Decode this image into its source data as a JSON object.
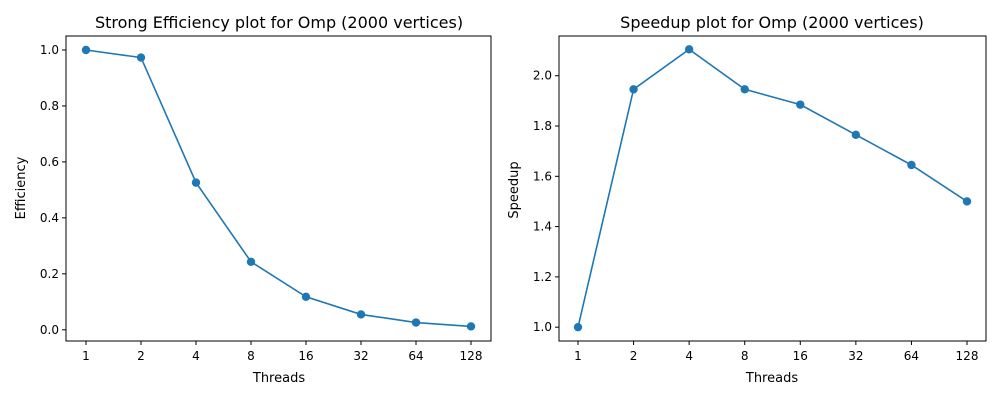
{
  "chart_data": [
    {
      "type": "line",
      "title": "Strong Efficiency plot for Omp (2000 vertices)",
      "xlabel": "Threads",
      "ylabel": "Efficiency",
      "categories": [
        "1",
        "2",
        "4",
        "8",
        "16",
        "32",
        "64",
        "128"
      ],
      "yticks": [
        "0.0",
        "0.2",
        "0.4",
        "0.6",
        "0.8",
        "1.0"
      ],
      "ylim": [
        -0.04,
        1.05
      ],
      "grid": false,
      "series": [
        {
          "values": [
            1.0,
            0.973,
            0.526,
            0.243,
            0.118,
            0.055,
            0.026,
            0.012
          ],
          "color": "#1f77b4",
          "marker": "circle"
        }
      ]
    },
    {
      "type": "line",
      "title": "Speedup plot for Omp (2000 vertices)",
      "xlabel": "Threads",
      "ylabel": "Speedup",
      "categories": [
        "1",
        "2",
        "4",
        "8",
        "16",
        "32",
        "64",
        "128"
      ],
      "yticks": [
        "1.0",
        "1.2",
        "1.4",
        "1.6",
        "1.8",
        "2.0"
      ],
      "ylim": [
        0.945,
        2.158
      ],
      "grid": false,
      "series": [
        {
          "values": [
            1.0,
            1.946,
            2.105,
            1.946,
            1.885,
            1.765,
            1.645,
            1.5
          ],
          "color": "#1f77b4",
          "marker": "circle"
        }
      ]
    }
  ]
}
